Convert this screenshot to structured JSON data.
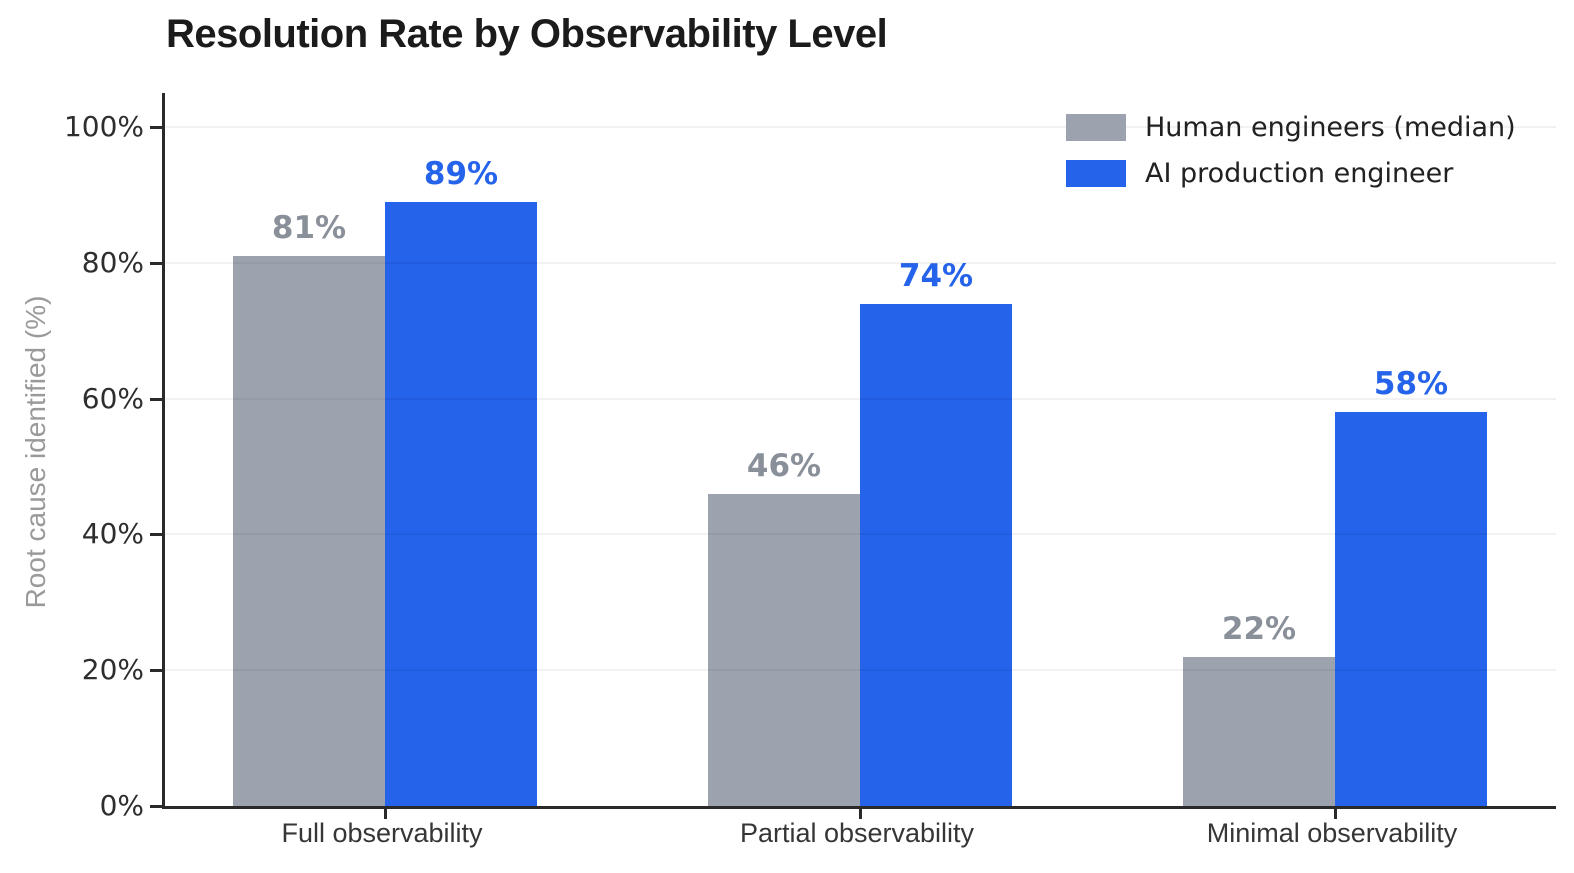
{
  "chart_data": {
    "type": "bar",
    "title": "Resolution Rate by Observability Level",
    "xlabel": "",
    "ylabel": "Root cause identified (%)",
    "categories": [
      "Full observability",
      "Partial observability",
      "Minimal observability"
    ],
    "series": [
      {
        "name": "Human engineers (median)",
        "values": [
          81,
          46,
          22
        ],
        "value_labels": [
          "81%",
          "46%",
          "22%"
        ],
        "bar_color": "#9ca3af",
        "label_color": "#8a9099"
      },
      {
        "name": "AI production engineer",
        "values": [
          89,
          74,
          58
        ],
        "value_labels": [
          "89%",
          "74%",
          "58%"
        ],
        "bar_color": "#2563eb",
        "label_color": "#2563eb"
      }
    ],
    "yticks": {
      "values": [
        0,
        20,
        40,
        60,
        80,
        100
      ],
      "labels": [
        "0%",
        "20%",
        "40%",
        "60%",
        "80%",
        "100%"
      ]
    },
    "ylim": [
      0,
      105
    ],
    "grid": "horizontal",
    "gridline_values": [
      20,
      40,
      60,
      80,
      100
    ],
    "legend_position": "upper-right",
    "background_color": "#ffffff",
    "axis_color": "#2a2a2a"
  }
}
